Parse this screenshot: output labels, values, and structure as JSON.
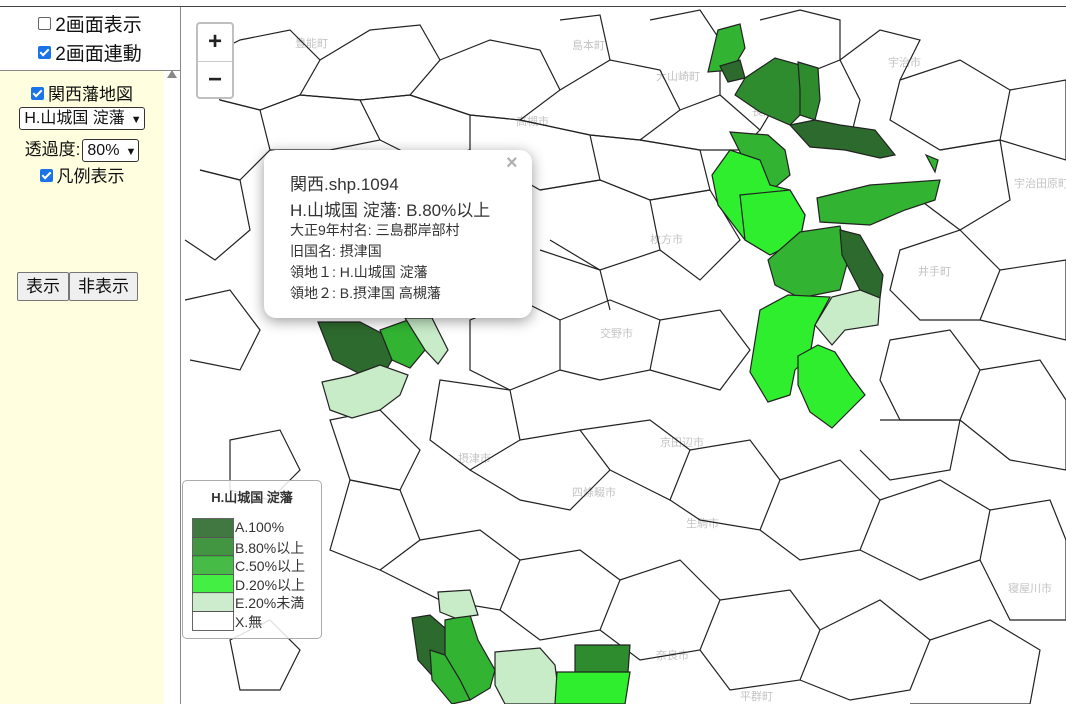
{
  "panel": {
    "dual_view_label": "2画面表示",
    "dual_view_checked": false,
    "dual_link_label": "2画面連動",
    "dual_link_checked": true,
    "layer_label": "関西藩地図",
    "layer_checked": true,
    "domain_select": "H.山城国 淀藩",
    "opacity_label": "透過度:",
    "opacity_value": "80%",
    "legend_toggle_label": "凡例表示",
    "legend_toggle_checked": true,
    "show_button": "表示",
    "hide_button": "非表示"
  },
  "zoom": {
    "in": "+",
    "out": "−"
  },
  "popup": {
    "close": "×",
    "title": "関西.shp.1094",
    "subtitle": "H.山城国 淀藩: B.80%以上",
    "village": "大正9年村名: 三島郡岸部村",
    "old_province": "旧国名: 摂津国",
    "domain1": "領地１: H.山城国 淀藩",
    "domain2": "領地２: B.摂津国 高槻藩"
  },
  "legend": {
    "title": "H.山城国 淀藩",
    "items": [
      {
        "label": "A.100%",
        "color": "#2d6a2d"
      },
      {
        "label": "B.80%以上",
        "color": "#2e8b2e"
      },
      {
        "label": "C.50%以上",
        "color": "#32b432"
      },
      {
        "label": "D.20%以上",
        "color": "#2eee2e"
      },
      {
        "label": "E.20%未満",
        "color": "#c8ebc8"
      },
      {
        "label": "X.無",
        "color": "#ffffff"
      }
    ]
  },
  "basemap_labels": [
    "豊能町",
    "島本町",
    "大山崎町",
    "宇治市",
    "高槻市",
    "長岡京市",
    "城陽市",
    "宇治田原町",
    "茨木市",
    "枚方市",
    "井手町",
    "交野市",
    "京田辺市",
    "摂津市",
    "四條畷市",
    "生駒市",
    "寝屋川市",
    "奈良市",
    "平群町"
  ]
}
